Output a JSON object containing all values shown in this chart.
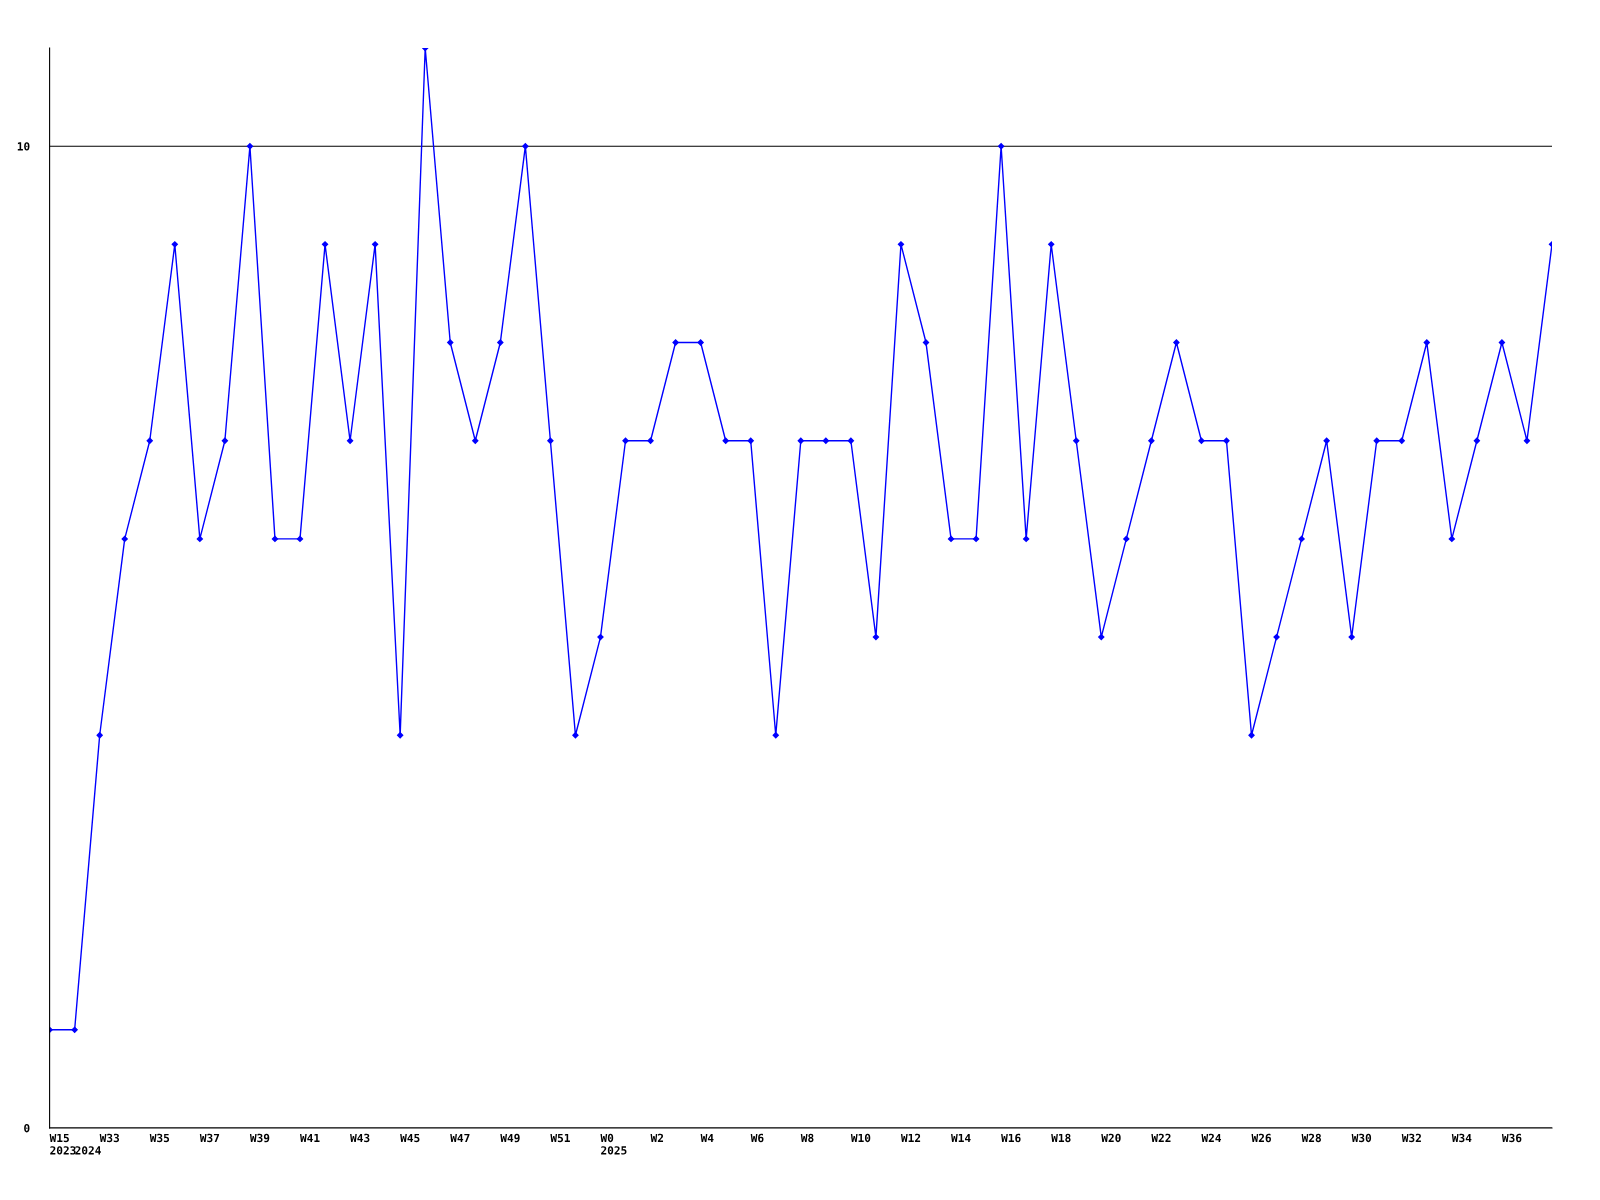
{
  "chart_data": {
    "type": "line",
    "categories": [
      "W15\n2023",
      "\n2024",
      "W33",
      null,
      "W35",
      null,
      "W37",
      null,
      "W39",
      null,
      "W41",
      null,
      "W43",
      null,
      "W45",
      null,
      "W47",
      null,
      "W49",
      null,
      "W51",
      null,
      "W0\n2025",
      null,
      "W2",
      null,
      "W4",
      null,
      "W6",
      null,
      "W8",
      null,
      "W10",
      null,
      "W12",
      null,
      "W14",
      null,
      "W16",
      null,
      "W18",
      null,
      "W20",
      null,
      "W22",
      null,
      "W24",
      null,
      "W26",
      null,
      "W28",
      null,
      "W30",
      null,
      "W32",
      null,
      "W34",
      null,
      "W36",
      null,
      null
    ],
    "series": [
      {
        "color": "#0000ff",
        "values": [
          1,
          1,
          4,
          6,
          7,
          9,
          6,
          7,
          10,
          6,
          6,
          9,
          7,
          9,
          4,
          11,
          8,
          7,
          8,
          10,
          7,
          4,
          5,
          7,
          7,
          8,
          8,
          7,
          7,
          4,
          7,
          7,
          7,
          5,
          9,
          8,
          6,
          6,
          10,
          6,
          9,
          7,
          5,
          6,
          7,
          8,
          7,
          7,
          4,
          5,
          6,
          7,
          5,
          7,
          7,
          8,
          6,
          7,
          8,
          7,
          9
        ]
      }
    ],
    "ylim": [
      0,
      11
    ],
    "yticks": [
      0,
      10
    ],
    "grid": "y",
    "marker": "diamond",
    "line_style": "solid",
    "legend": false
  }
}
